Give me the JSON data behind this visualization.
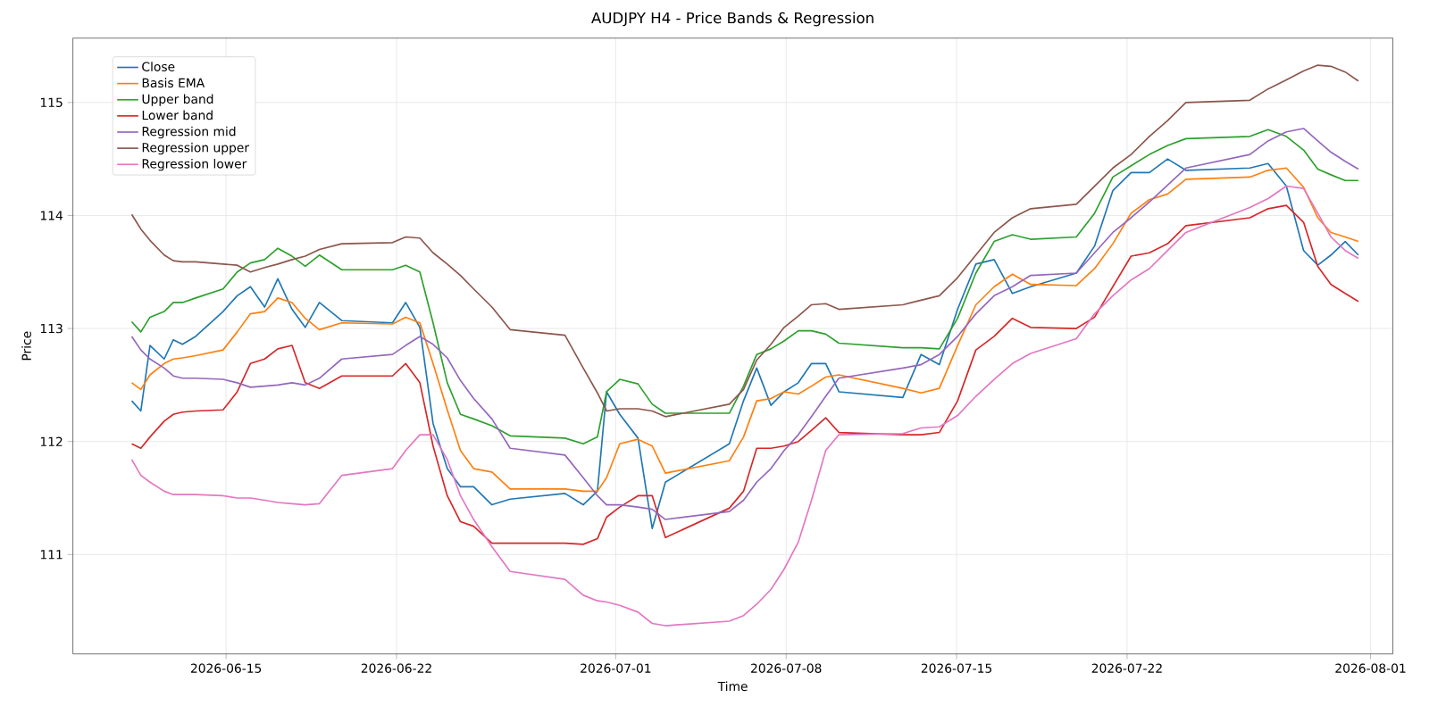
{
  "chart_data": {
    "type": "line",
    "title": "AUDJPY H4 - Price Bands & Regression",
    "xlabel": "Time",
    "ylabel": "Price",
    "x": [
      "2026-06-11T03:00",
      "2026-06-11T12:00",
      "2026-06-11T21:00",
      "2026-06-12T11:00",
      "2026-06-12T20:00",
      "2026-06-13T05:00",
      "2026-06-13T18:00",
      "2026-06-14T21:00",
      "2026-06-15T11:00",
      "2026-06-16T00:00",
      "2026-06-16T14:00",
      "2026-06-17T03:00",
      "2026-06-17T17:00",
      "2026-06-18T06:00",
      "2026-06-18T20:00",
      "2026-06-19T18:00",
      "2026-06-21T20:00",
      "2026-06-22T09:00",
      "2026-06-22T23:00",
      "2026-06-23T12:00",
      "2026-06-24T02:00",
      "2026-06-24T15:00",
      "2026-06-25T04:00",
      "2026-06-25T22:00",
      "2026-06-26T16:00",
      "2026-06-28T22:00",
      "2026-06-29T16:00",
      "2026-06-30T06:00",
      "2026-06-30T15:00",
      "2026-07-01T04:00",
      "2026-07-01T22:00",
      "2026-07-02T12:00",
      "2026-07-03T01:00",
      "2026-07-05T16:00",
      "2026-07-06T06:00",
      "2026-07-06T19:00",
      "2026-07-07T09:00",
      "2026-07-07T22:00",
      "2026-07-08T12:00",
      "2026-07-09T01:00",
      "2026-07-09T15:00",
      "2026-07-10T04:00",
      "2026-07-12T19:00",
      "2026-07-13T13:00",
      "2026-07-14T07:00",
      "2026-07-15T01:00",
      "2026-07-15T19:00",
      "2026-07-16T13:00",
      "2026-07-17T07:00",
      "2026-07-18T01:00",
      "2026-07-19T22:00",
      "2026-07-20T16:00",
      "2026-07-21T10:00",
      "2026-07-22T04:00",
      "2026-07-22T22:00",
      "2026-07-23T16:00",
      "2026-07-24T10:00",
      "2026-07-27T01:00",
      "2026-07-27T19:00",
      "2026-07-28T13:00",
      "2026-07-29T06:00",
      "2026-07-29T20:00",
      "2026-07-30T09:00",
      "2026-07-30T23:00",
      "2026-07-31T12:00"
    ],
    "series": [
      {
        "name": "Close",
        "color": "#1f77b4",
        "values": [
          112.36,
          112.27,
          112.85,
          112.73,
          112.9,
          112.86,
          112.93,
          113.15,
          113.29,
          113.37,
          113.19,
          113.44,
          113.17,
          113.01,
          113.23,
          113.07,
          113.05,
          113.23,
          113.01,
          112.16,
          111.76,
          111.6,
          111.6,
          111.44,
          111.49,
          111.54,
          111.44,
          111.56,
          112.44,
          112.24,
          112.03,
          111.23,
          111.64,
          111.98,
          112.36,
          112.65,
          112.32,
          112.44,
          112.52,
          112.69,
          112.69,
          112.44,
          112.39,
          112.77,
          112.68,
          113.17,
          113.57,
          113.61,
          113.31,
          113.37,
          113.49,
          113.73,
          114.22,
          114.38,
          114.38,
          114.5,
          114.4,
          114.42,
          114.46,
          114.26,
          113.69,
          113.56,
          113.65,
          113.77,
          113.65
        ]
      },
      {
        "name": "Basis EMA",
        "color": "#ff7f0e",
        "values": [
          112.52,
          112.46,
          112.59,
          112.69,
          112.73,
          112.74,
          112.76,
          112.81,
          112.97,
          113.13,
          113.15,
          113.27,
          113.23,
          113.09,
          112.99,
          113.05,
          113.04,
          113.1,
          113.05,
          112.69,
          112.28,
          111.92,
          111.76,
          111.73,
          111.58,
          111.58,
          111.56,
          111.56,
          111.68,
          111.98,
          112.02,
          111.96,
          111.72,
          111.83,
          112.04,
          112.36,
          112.38,
          112.44,
          112.42,
          112.49,
          112.57,
          112.59,
          112.47,
          112.43,
          112.47,
          112.85,
          113.21,
          113.37,
          113.48,
          113.39,
          113.38,
          113.53,
          113.75,
          114.02,
          114.14,
          114.19,
          114.32,
          114.34,
          114.4,
          114.42,
          114.25,
          113.98,
          113.85,
          113.81,
          113.77
        ]
      },
      {
        "name": "Upper band",
        "color": "#2ca02c",
        "values": [
          113.06,
          112.97,
          113.1,
          113.15,
          113.23,
          113.23,
          113.27,
          113.35,
          113.5,
          113.58,
          113.61,
          113.71,
          113.64,
          113.55,
          113.65,
          113.52,
          113.52,
          113.56,
          113.5,
          113.05,
          112.52,
          112.24,
          112.2,
          112.14,
          112.05,
          112.03,
          111.98,
          112.04,
          112.44,
          112.55,
          112.51,
          112.33,
          112.25,
          112.25,
          112.49,
          112.77,
          112.82,
          112.89,
          112.98,
          112.98,
          112.95,
          112.87,
          112.83,
          112.83,
          112.82,
          113.09,
          113.49,
          113.77,
          113.83,
          113.79,
          113.81,
          114.02,
          114.34,
          114.44,
          114.54,
          114.62,
          114.68,
          114.7,
          114.76,
          114.7,
          114.58,
          114.41,
          114.36,
          114.31,
          114.31
        ]
      },
      {
        "name": "Lower band",
        "color": "#d62728",
        "values": [
          111.98,
          111.94,
          112.04,
          112.18,
          112.24,
          112.26,
          112.27,
          112.28,
          112.44,
          112.69,
          112.73,
          112.82,
          112.85,
          112.52,
          112.47,
          112.58,
          112.58,
          112.69,
          112.52,
          111.96,
          111.52,
          111.29,
          111.25,
          111.1,
          111.1,
          111.1,
          111.09,
          111.14,
          111.33,
          111.42,
          111.52,
          111.52,
          111.15,
          111.41,
          111.56,
          111.94,
          111.94,
          111.96,
          112.0,
          112.1,
          112.21,
          112.08,
          112.06,
          112.06,
          112.08,
          112.36,
          112.81,
          112.93,
          113.09,
          113.01,
          113.0,
          113.1,
          113.37,
          113.64,
          113.67,
          113.75,
          113.91,
          113.98,
          114.06,
          114.09,
          113.94,
          113.55,
          113.39,
          113.31,
          113.24
        ]
      },
      {
        "name": "Regression mid",
        "color": "#9467bd",
        "values": [
          112.93,
          112.81,
          112.73,
          112.65,
          112.58,
          112.56,
          112.56,
          112.55,
          112.52,
          112.48,
          112.49,
          112.5,
          112.52,
          112.5,
          112.56,
          112.73,
          112.77,
          112.85,
          112.93,
          112.86,
          112.74,
          112.54,
          112.38,
          112.2,
          111.94,
          111.88,
          111.68,
          111.52,
          111.44,
          111.44,
          111.42,
          111.4,
          111.31,
          111.38,
          111.48,
          111.64,
          111.76,
          111.92,
          112.06,
          112.22,
          112.4,
          112.56,
          112.65,
          112.68,
          112.77,
          112.93,
          113.13,
          113.29,
          113.37,
          113.47,
          113.49,
          113.67,
          113.85,
          113.98,
          114.12,
          114.27,
          114.42,
          114.54,
          114.66,
          114.74,
          114.77,
          114.66,
          114.56,
          114.48,
          114.41
        ]
      },
      {
        "name": "Regression upper",
        "color": "#8c564b",
        "values": [
          114.01,
          113.88,
          113.78,
          113.65,
          113.6,
          113.59,
          113.59,
          113.57,
          113.56,
          113.5,
          113.54,
          113.57,
          113.61,
          113.64,
          113.7,
          113.75,
          113.76,
          113.81,
          113.8,
          113.67,
          113.57,
          113.47,
          113.35,
          113.19,
          112.99,
          112.94,
          112.65,
          112.43,
          112.27,
          112.29,
          112.29,
          112.27,
          112.22,
          112.33,
          112.46,
          112.72,
          112.86,
          113.01,
          113.11,
          113.21,
          113.22,
          113.17,
          113.21,
          113.25,
          113.29,
          113.45,
          113.65,
          113.85,
          113.98,
          114.06,
          114.1,
          114.26,
          114.42,
          114.54,
          114.7,
          114.84,
          115.0,
          115.02,
          115.12,
          115.2,
          115.28,
          115.33,
          115.32,
          115.27,
          115.19
        ]
      },
      {
        "name": "Regression lower",
        "color": "#e377c2",
        "values": [
          111.84,
          111.7,
          111.64,
          111.56,
          111.53,
          111.53,
          111.53,
          111.52,
          111.5,
          111.5,
          111.48,
          111.46,
          111.45,
          111.44,
          111.45,
          111.7,
          111.76,
          111.92,
          112.06,
          112.06,
          111.84,
          111.52,
          111.31,
          111.07,
          110.85,
          110.78,
          110.64,
          110.59,
          110.58,
          110.55,
          110.49,
          110.39,
          110.37,
          110.41,
          110.46,
          110.56,
          110.69,
          110.87,
          111.11,
          111.48,
          111.92,
          112.06,
          112.07,
          112.12,
          112.13,
          112.23,
          112.4,
          112.55,
          112.69,
          112.78,
          112.91,
          113.13,
          113.29,
          113.43,
          113.53,
          113.69,
          113.85,
          114.07,
          114.15,
          114.26,
          114.24,
          114.02,
          113.81,
          113.69,
          113.62
        ]
      }
    ],
    "xlim": [
      "2026-06-08T17:00",
      "2026-08-01T22:00"
    ],
    "ylim": [
      110.12,
      115.57
    ],
    "xticks": [
      {
        "value": "2026-06-15",
        "label": "2026-06-15"
      },
      {
        "value": "2026-06-22",
        "label": "2026-06-22"
      },
      {
        "value": "2026-07-01",
        "label": "2026-07-01"
      },
      {
        "value": "2026-07-08",
        "label": "2026-07-08"
      },
      {
        "value": "2026-07-15",
        "label": "2026-07-15"
      },
      {
        "value": "2026-07-22",
        "label": "2026-07-22"
      },
      {
        "value": "2026-08-01",
        "label": "2026-08-01"
      }
    ],
    "yticks": [
      111,
      112,
      113,
      114,
      115
    ],
    "grid": true,
    "legend": "top left",
    "marker": "none",
    "line_style": "solid"
  }
}
